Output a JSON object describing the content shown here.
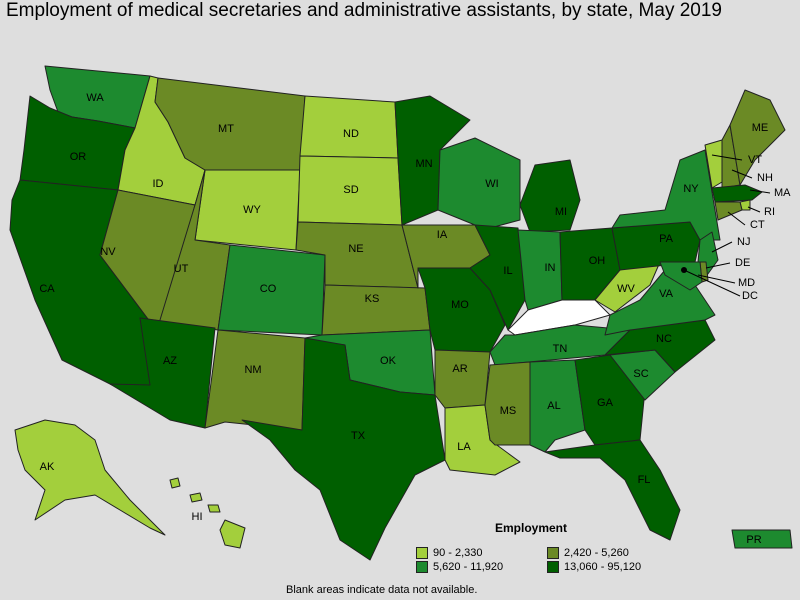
{
  "title": "Employment of medical secretaries and administrative assistants, by state, May 2019",
  "colors": {
    "background": "#dedede",
    "class1": "#a3cf3c",
    "class2": "#6b8a25",
    "class3": "#1d8a2f",
    "class4": "#005f00",
    "no_data": "#ffffff"
  },
  "legend": {
    "title": "Employment",
    "classes": [
      {
        "range": "90 - 2,330",
        "color": "#a3cf3c"
      },
      {
        "range": "2,420 - 5,260",
        "color": "#6b8a25"
      },
      {
        "range": "5,620 - 11,920",
        "color": "#1d8a2f"
      },
      {
        "range": "13,060 - 95,120",
        "color": "#005f00"
      }
    ]
  },
  "note": "Blank areas indicate data not available.",
  "map_data": {
    "states": [
      {
        "abbr": "WA",
        "class": 3
      },
      {
        "abbr": "OR",
        "class": 4
      },
      {
        "abbr": "CA",
        "class": 4
      },
      {
        "abbr": "ID",
        "class": 1
      },
      {
        "abbr": "NV",
        "class": 2
      },
      {
        "abbr": "MT",
        "class": 2
      },
      {
        "abbr": "WY",
        "class": 1
      },
      {
        "abbr": "UT",
        "class": 2
      },
      {
        "abbr": "AZ",
        "class": 4
      },
      {
        "abbr": "CO",
        "class": 3
      },
      {
        "abbr": "NM",
        "class": 2
      },
      {
        "abbr": "ND",
        "class": 1
      },
      {
        "abbr": "SD",
        "class": 1
      },
      {
        "abbr": "NE",
        "class": 2
      },
      {
        "abbr": "KS",
        "class": 2
      },
      {
        "abbr": "OK",
        "class": 3
      },
      {
        "abbr": "TX",
        "class": 4
      },
      {
        "abbr": "MN",
        "class": 4
      },
      {
        "abbr": "IA",
        "class": 2
      },
      {
        "abbr": "MO",
        "class": 4
      },
      {
        "abbr": "AR",
        "class": 2
      },
      {
        "abbr": "LA",
        "class": 1
      },
      {
        "abbr": "WI",
        "class": 3
      },
      {
        "abbr": "IL",
        "class": 4
      },
      {
        "abbr": "MI",
        "class": 4
      },
      {
        "abbr": "IN",
        "class": 3
      },
      {
        "abbr": "OH",
        "class": 4
      },
      {
        "abbr": "KY",
        "class": 0
      },
      {
        "abbr": "TN",
        "class": 3
      },
      {
        "abbr": "MS",
        "class": 2
      },
      {
        "abbr": "AL",
        "class": 3
      },
      {
        "abbr": "GA",
        "class": 4
      },
      {
        "abbr": "FL",
        "class": 4
      },
      {
        "abbr": "SC",
        "class": 3
      },
      {
        "abbr": "NC",
        "class": 4
      },
      {
        "abbr": "VA",
        "class": 3
      },
      {
        "abbr": "WV",
        "class": 1
      },
      {
        "abbr": "PA",
        "class": 4
      },
      {
        "abbr": "NY",
        "class": 3
      },
      {
        "abbr": "VT",
        "class": 1
      },
      {
        "abbr": "NH",
        "class": 2
      },
      {
        "abbr": "ME",
        "class": 2
      },
      {
        "abbr": "MA",
        "class": 4
      },
      {
        "abbr": "RI",
        "class": 1
      },
      {
        "abbr": "CT",
        "class": 2
      },
      {
        "abbr": "NJ",
        "class": 3
      },
      {
        "abbr": "DE",
        "class": 2
      },
      {
        "abbr": "MD",
        "class": 3
      },
      {
        "abbr": "DC",
        "class": 4
      },
      {
        "abbr": "AK",
        "class": 1
      },
      {
        "abbr": "HI",
        "class": 1
      },
      {
        "abbr": "PR",
        "class": 3
      }
    ]
  }
}
